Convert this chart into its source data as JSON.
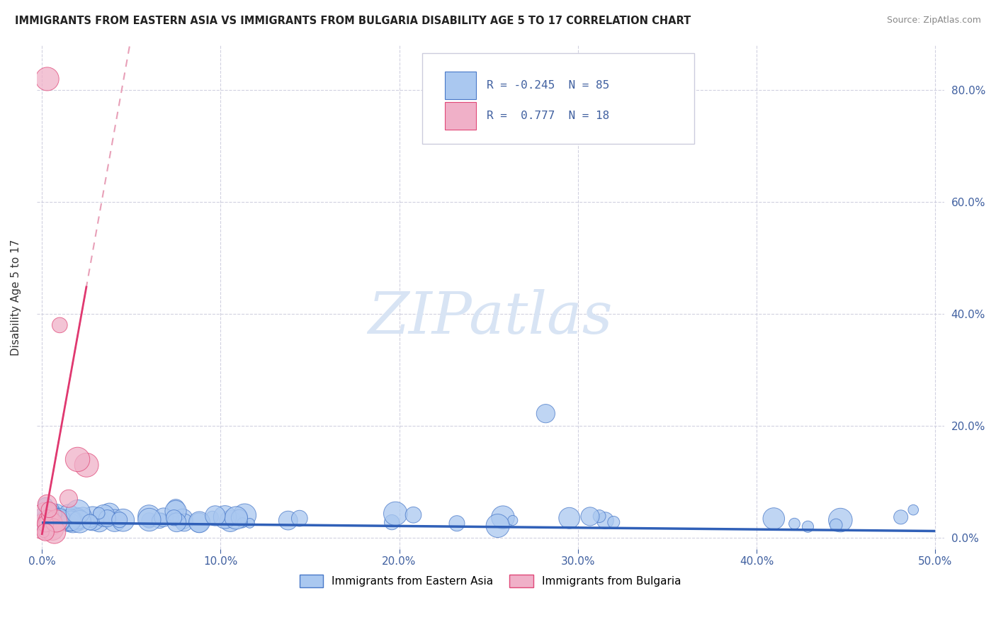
{
  "title": "IMMIGRANTS FROM EASTERN ASIA VS IMMIGRANTS FROM BULGARIA DISABILITY AGE 5 TO 17 CORRELATION CHART",
  "source": "Source: ZipAtlas.com",
  "ylabel_label": "Disability Age 5 to 17",
  "legend_label1": "Immigrants from Eastern Asia",
  "legend_label2": "Immigrants from Bulgaria",
  "R1": -0.245,
  "N1": 85,
  "R2": 0.777,
  "N2": 18,
  "color_blue_fill": "#aac8f0",
  "color_blue_edge": "#4878c8",
  "color_pink_fill": "#f0b0c8",
  "color_pink_edge": "#e04878",
  "color_trend_blue": "#3060b8",
  "color_trend_pink": "#e03870",
  "color_trend_pink_dash": "#e8a0b8",
  "watermark_color": "#d8e4f4",
  "bg_color": "#ffffff",
  "grid_color": "#ccccdd",
  "title_color": "#222222",
  "source_color": "#888888",
  "axis_color": "#4060a0",
  "ylabel_color": "#333333",
  "xlim": [
    -0.003,
    0.505
  ],
  "ylim": [
    -0.02,
    0.88
  ],
  "xticks": [
    0.0,
    0.1,
    0.2,
    0.3,
    0.4,
    0.5
  ],
  "xticklabels": [
    "0.0%",
    "10.0%",
    "20.0%",
    "30.0%",
    "40.0%",
    "50.0%"
  ],
  "yticks": [
    0.0,
    0.2,
    0.4,
    0.6,
    0.8
  ],
  "yticklabels": [
    "0.0%",
    "20.0%",
    "40.0%",
    "60.0%",
    "80.0%"
  ]
}
